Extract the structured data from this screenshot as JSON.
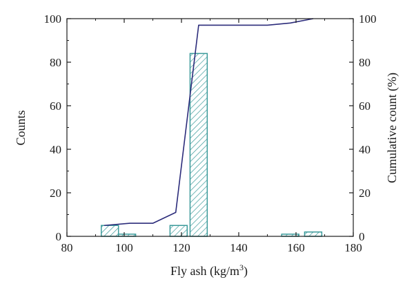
{
  "chart_data": {
    "type": "bar",
    "xlabel": "Fly ash (kg/m",
    "xlabel_sup": "3",
    "xlabel_suffix": ")",
    "ylabel": "Counts",
    "y2label": "Cumulative count (%)",
    "xlim": [
      80,
      180
    ],
    "ylim": [
      0,
      100
    ],
    "y2lim": [
      0,
      100
    ],
    "xticks": [
      80,
      100,
      120,
      140,
      160,
      180
    ],
    "yticks": [
      0,
      20,
      40,
      60,
      80,
      100
    ],
    "y2ticks": [
      0,
      20,
      40,
      60,
      80,
      100
    ],
    "bar_width": 6,
    "bars": [
      {
        "x": 95,
        "value": 5
      },
      {
        "x": 101,
        "value": 1
      },
      {
        "x": 119,
        "value": 5
      },
      {
        "x": 126,
        "value": 84
      },
      {
        "x": 158,
        "value": 1
      },
      {
        "x": 166,
        "value": 2
      }
    ],
    "cumulative_line": {
      "x": [
        93,
        102,
        110,
        118,
        126,
        150,
        158,
        166
      ],
      "values": [
        5,
        6,
        6,
        11,
        97,
        97,
        98,
        100
      ]
    },
    "bar_color": "#3a9a9a",
    "line_color": "#2b2b7a",
    "hatch": "diagonal"
  }
}
